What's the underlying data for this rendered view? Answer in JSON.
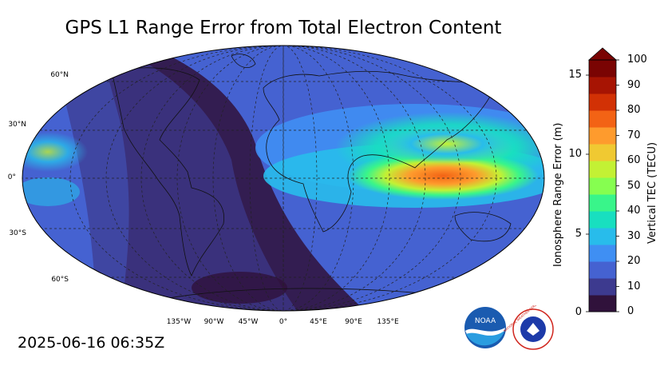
{
  "title": "GPS L1 Range Error from Total Electron Content",
  "timestamp": "2025-06-16 06:35Z",
  "map": {
    "lat_labels": [
      "60°N",
      "30°N",
      "0°",
      "30°S",
      "60°S"
    ],
    "lon_labels": [
      "135°W",
      "90°W",
      "45°W",
      "0°",
      "45°E",
      "90°E",
      "135°E"
    ]
  },
  "colorbar": {
    "left_axis_title": "Ionosphere Range Error (m)",
    "right_axis_title": "Vertical TEC (TECU)",
    "left_ticks": [
      "15",
      "10",
      "5",
      "0"
    ],
    "right_ticks": [
      "100",
      "90",
      "80",
      "70",
      "60",
      "50",
      "40",
      "30",
      "20",
      "10",
      "0"
    ],
    "colors": [
      "#30123b",
      "#3d3a8f",
      "#4562d1",
      "#3f8ff3",
      "#28bceb",
      "#18dfc0",
      "#39f58a",
      "#86fe50",
      "#c3f134",
      "#f0c932",
      "#fe9b2d",
      "#f36315",
      "#d23105",
      "#a71403",
      "#7a0403"
    ]
  },
  "logos": {
    "noaa_text": "NOAA",
    "nws_text": "NATIONAL WEATHER SERVICE"
  }
}
